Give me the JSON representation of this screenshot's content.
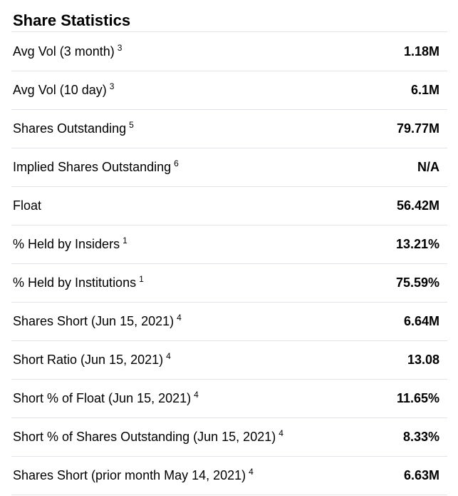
{
  "section": {
    "title": "Share Statistics",
    "rows": [
      {
        "label": "Avg Vol (3 month)",
        "note": "3",
        "value": "1.18M"
      },
      {
        "label": "Avg Vol (10 day)",
        "note": "3",
        "value": "6.1M"
      },
      {
        "label": "Shares Outstanding",
        "note": "5",
        "value": "79.77M"
      },
      {
        "label": "Implied Shares Outstanding",
        "note": "6",
        "value": "N/A"
      },
      {
        "label": "Float",
        "note": "",
        "value": "56.42M"
      },
      {
        "label": "% Held by Insiders",
        "note": "1",
        "value": "13.21%"
      },
      {
        "label": "% Held by Institutions",
        "note": "1",
        "value": "75.59%"
      },
      {
        "label": "Shares Short (Jun 15, 2021)",
        "note": "4",
        "value": "6.64M"
      },
      {
        "label": "Short Ratio (Jun 15, 2021)",
        "note": "4",
        "value": "13.08"
      },
      {
        "label": "Short % of Float (Jun 15, 2021)",
        "note": "4",
        "value": "11.65%"
      },
      {
        "label": "Short % of Shares Outstanding (Jun 15, 2021)",
        "note": "4",
        "value": "8.33%"
      },
      {
        "label": "Shares Short (prior month May 14, 2021)",
        "note": "4",
        "value": "6.63M"
      }
    ]
  }
}
